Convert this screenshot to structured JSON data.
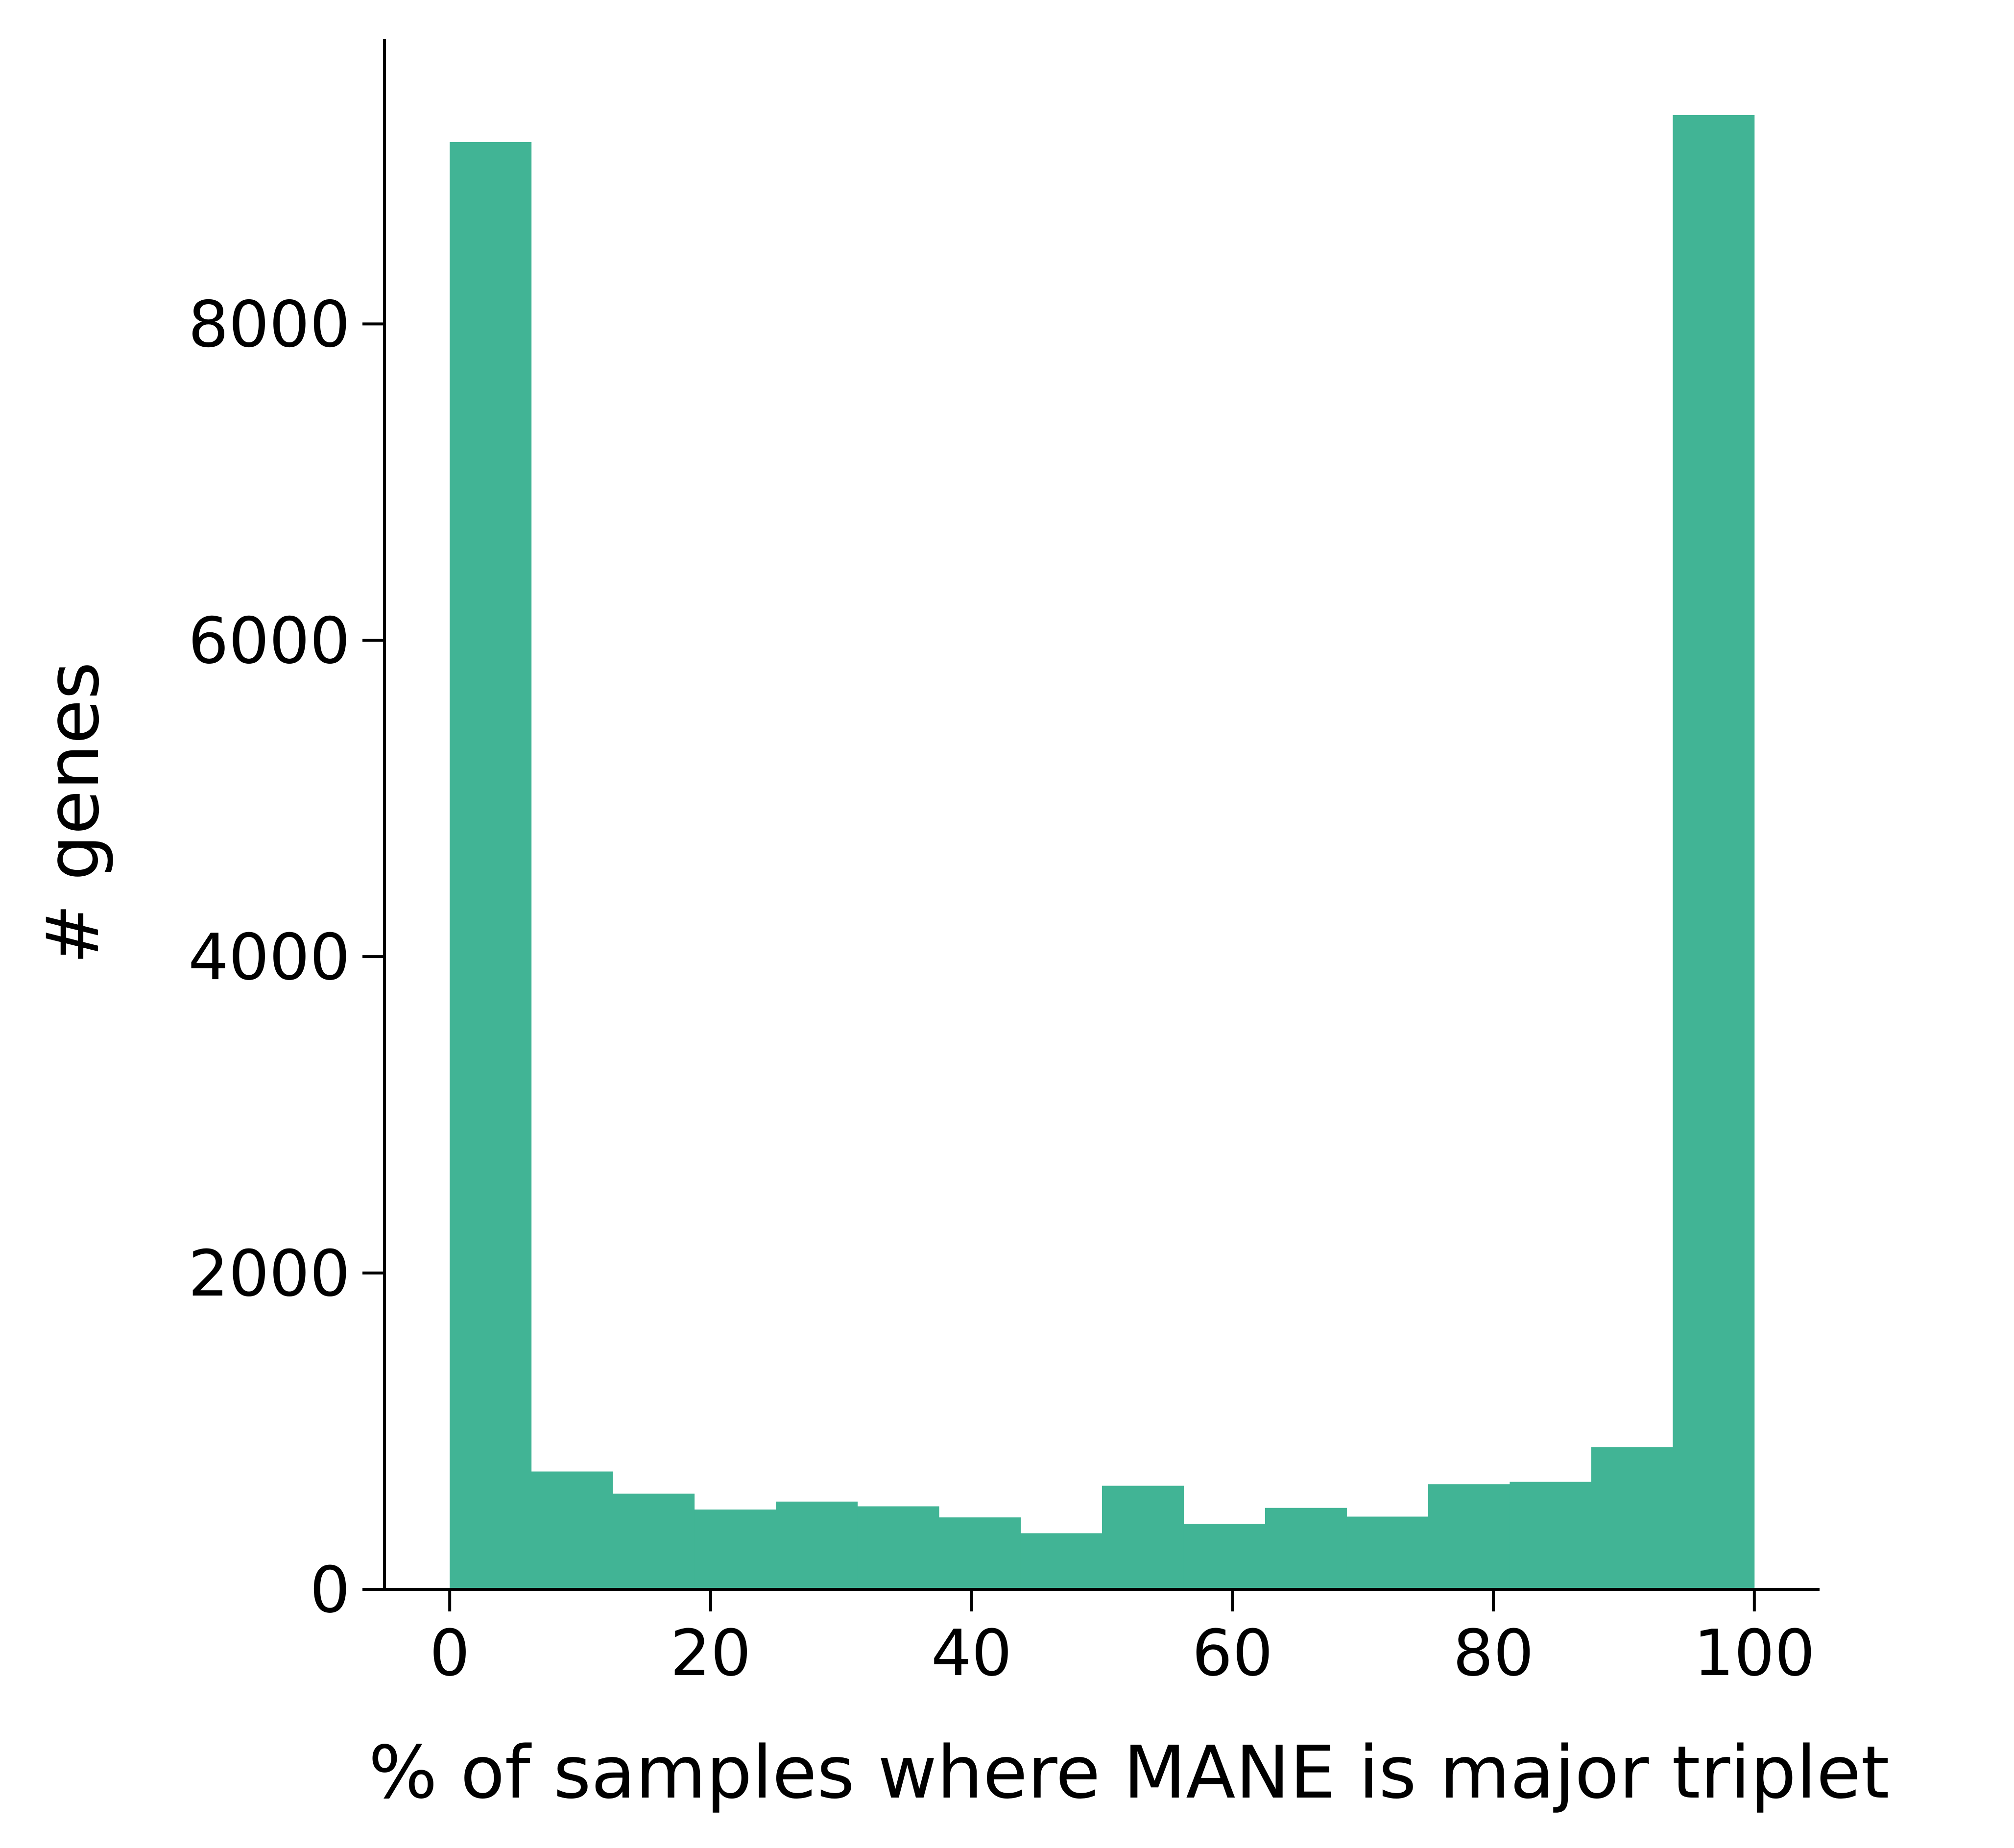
{
  "chart_data": {
    "type": "bar",
    "subtype": "histogram",
    "title": "",
    "xlabel": "% of samples where MANE is major triplet",
    "ylabel": "# genes",
    "xlim": [
      -5,
      105
    ],
    "ylim": [
      0,
      9800
    ],
    "xticks": [
      0,
      20,
      40,
      60,
      80,
      100
    ],
    "yticks": [
      0,
      2000,
      4000,
      6000,
      8000
    ],
    "grid": false,
    "legend": "none",
    "spines": [
      "left",
      "bottom"
    ],
    "bar_color": "#41b495",
    "bins": [
      {
        "x0": 0.0,
        "x1": 6.25,
        "value": 9150
      },
      {
        "x0": 6.25,
        "x1": 12.5,
        "value": 745
      },
      {
        "x0": 12.5,
        "x1": 18.75,
        "value": 605
      },
      {
        "x0": 18.75,
        "x1": 25.0,
        "value": 505
      },
      {
        "x0": 25.0,
        "x1": 31.25,
        "value": 555
      },
      {
        "x0": 31.25,
        "x1": 37.5,
        "value": 525
      },
      {
        "x0": 37.5,
        "x1": 43.75,
        "value": 455
      },
      {
        "x0": 43.75,
        "x1": 50.0,
        "value": 355
      },
      {
        "x0": 50.0,
        "x1": 56.25,
        "value": 655
      },
      {
        "x0": 56.25,
        "x1": 62.5,
        "value": 415
      },
      {
        "x0": 62.5,
        "x1": 68.75,
        "value": 515
      },
      {
        "x0": 68.75,
        "x1": 75.0,
        "value": 460
      },
      {
        "x0": 75.0,
        "x1": 81.25,
        "value": 665
      },
      {
        "x0": 81.25,
        "x1": 87.5,
        "value": 680
      },
      {
        "x0": 87.5,
        "x1": 93.75,
        "value": 900
      },
      {
        "x0": 93.75,
        "x1": 100.0,
        "value": 9320
      }
    ]
  }
}
